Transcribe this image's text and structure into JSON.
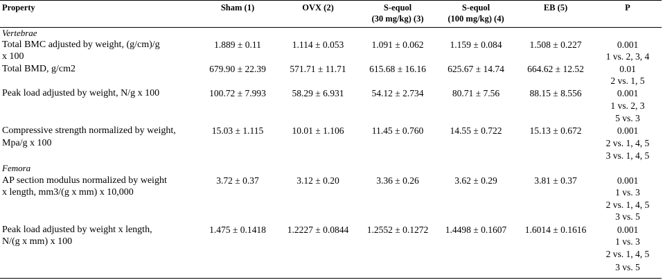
{
  "header": {
    "property": "Property",
    "sham": "Sham (1)",
    "ovx": "OVX (2)",
    "sequol30_l1": "S-equol",
    "sequol30_l2": "(30 mg/kg) (3)",
    "sequol100_l1": "S-equol",
    "sequol100_l2": "(100 mg/kg) (4)",
    "eb": "EB (5)",
    "p": "P"
  },
  "sections": {
    "vertebrae": "Vertebrae",
    "femora": "Femora"
  },
  "rows": [
    {
      "label": [
        "Total BMC adjusted by weight, (g/cm)/g",
        "x 100"
      ],
      "values": [
        "1.889 ± 0.11",
        "1.114 ± 0.053",
        "1.091 ± 0.062",
        "1.159 ± 0.084",
        "1.508 ± 0.227"
      ],
      "p": [
        "0.001",
        "1 vs. 2, 3, 4"
      ]
    },
    {
      "label": [
        "Total BMD, g/cm2"
      ],
      "values": [
        "679.90 ± 22.39",
        "571.71 ± 11.71",
        "615.68 ± 16.16",
        "625.67 ± 14.74",
        "664.62 ± 12.52"
      ],
      "p": [
        "0.01",
        "2 vs. 1, 5"
      ]
    },
    {
      "label": [
        "Peak load adjusted by weight, N/g x 100"
      ],
      "values": [
        "100.72 ± 7.993",
        "58.29 ± 6.931",
        "54.12 ± 2.734",
        "80.71 ± 7.56",
        "88.15 ± 8.556"
      ],
      "p": [
        "0.001",
        "1 vs. 2, 3",
        "5 vs. 3"
      ]
    },
    {
      "label": [
        "Compressive strength normalized by weight,",
        "Mpa/g x 100"
      ],
      "values": [
        "15.03 ± 1.115",
        "10.01 ± 1.106",
        "11.45 ± 0.760",
        "14.55 ± 0.722",
        "15.13 ± 0.672"
      ],
      "p": [
        "0.001",
        "2 vs. 1, 4, 5",
        "3 vs. 1, 4, 5"
      ]
    },
    {
      "label": [
        "AP section modulus normalized by weight",
        "x length, mm3/(g x mm) x 10,000"
      ],
      "values": [
        "3.72 ± 0.37",
        "3.12 ± 0.20",
        "3.36 ± 0.26",
        "3.62 ± 0.29",
        "3.81 ± 0.37"
      ],
      "p": [
        "0.001",
        "1 vs. 3",
        "2 vs. 1, 4, 5",
        "3 vs. 5"
      ]
    },
    {
      "label": [
        "Peak load adjusted by weight x length,",
        "N/(g x mm) x 100"
      ],
      "values": [
        "1.475 ± 0.1418",
        "1.2227 ± 0.0844",
        "1.2552 ± 0.1272",
        "1.4498 ± 0.1607",
        "1.6014 ± 0.1616"
      ],
      "p": [
        "0.001",
        "1 vs. 3",
        "2 vs. 1, 4, 5",
        "3 vs. 5"
      ]
    }
  ]
}
